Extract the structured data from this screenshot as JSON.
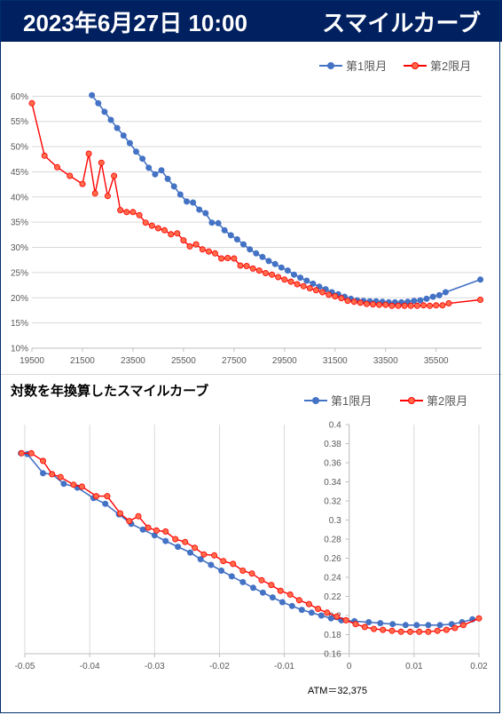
{
  "header": {
    "date": "2023年6月27日 10:00",
    "title": "スマイルカーブ"
  },
  "colors": {
    "header_bg": "#002060",
    "series1": "#4472c4",
    "series2": "#ff0000",
    "series2_fill": "#ff6a4a"
  },
  "chart_data": [
    {
      "type": "line",
      "title": "",
      "xlabel": "",
      "ylabel": "",
      "xlim": [
        19500,
        37300
      ],
      "ylim": [
        10,
        62
      ],
      "xticks": [
        "19500",
        "21500",
        "23500",
        "25500",
        "27500",
        "29500",
        "31500",
        "33500",
        "35500"
      ],
      "yticks": [
        "10%",
        "15%",
        "20%",
        "25%",
        "30%",
        "35%",
        "40%",
        "45%",
        "50%",
        "55%",
        "60%"
      ],
      "grid": "horizontal",
      "legend": "top-right",
      "series": [
        {
          "name": "第1限月",
          "points": [
            [
              21875,
              60.2
            ],
            [
              22125,
              58.6
            ],
            [
              22375,
              56.9
            ],
            [
              22625,
              55.3
            ],
            [
              22875,
              53.7
            ],
            [
              23125,
              52.2
            ],
            [
              23375,
              50.7
            ],
            [
              23625,
              49.0
            ],
            [
              23875,
              47.6
            ],
            [
              24125,
              45.8
            ],
            [
              24375,
              44.5
            ],
            [
              24625,
              45.3
            ],
            [
              24875,
              43.6
            ],
            [
              25125,
              42.1
            ],
            [
              25375,
              40.5
            ],
            [
              25625,
              39.1
            ],
            [
              25875,
              38.9
            ],
            [
              26125,
              37.5
            ],
            [
              26375,
              36.8
            ],
            [
              26625,
              34.9
            ],
            [
              26875,
              34.8
            ],
            [
              27125,
              33.4
            ],
            [
              27375,
              32.4
            ],
            [
              27625,
              31.6
            ],
            [
              27875,
              30.6
            ],
            [
              28125,
              29.6
            ],
            [
              28375,
              28.8
            ],
            [
              28625,
              28.1
            ],
            [
              28875,
              27.3
            ],
            [
              29125,
              26.7
            ],
            [
              29375,
              26.0
            ],
            [
              29625,
              25.4
            ],
            [
              29875,
              24.6
            ],
            [
              30125,
              24.0
            ],
            [
              30375,
              23.4
            ],
            [
              30625,
              22.8
            ],
            [
              30875,
              22.2
            ],
            [
              31125,
              21.7
            ],
            [
              31375,
              21.1
            ],
            [
              31625,
              20.7
            ],
            [
              31875,
              20.2
            ],
            [
              32125,
              19.8
            ],
            [
              32375,
              19.5
            ],
            [
              32625,
              19.4
            ],
            [
              32875,
              19.3
            ],
            [
              33125,
              19.3
            ],
            [
              33375,
              19.2
            ],
            [
              33625,
              19.1
            ],
            [
              33875,
              19.1
            ],
            [
              34125,
              19.1
            ],
            [
              34375,
              19.2
            ],
            [
              34625,
              19.4
            ],
            [
              34875,
              19.5
            ],
            [
              35125,
              19.8
            ],
            [
              35375,
              20.2
            ],
            [
              35625,
              20.5
            ],
            [
              35875,
              21.1
            ],
            [
              37250,
              23.6
            ]
          ]
        },
        {
          "name": "第2限月",
          "points": [
            [
              19500,
              58.6
            ],
            [
              20000,
              48.2
            ],
            [
              20500,
              45.9
            ],
            [
              21000,
              44.2
            ],
            [
              21500,
              42.6
            ],
            [
              21750,
              48.6
            ],
            [
              22000,
              40.7
            ],
            [
              22250,
              46.8
            ],
            [
              22500,
              40.2
            ],
            [
              22750,
              44.2
            ],
            [
              23000,
              37.4
            ],
            [
              23250,
              37.0
            ],
            [
              23500,
              37.0
            ],
            [
              23750,
              36.4
            ],
            [
              24000,
              34.9
            ],
            [
              24250,
              34.3
            ],
            [
              24500,
              33.8
            ],
            [
              24750,
              33.4
            ],
            [
              25000,
              32.6
            ],
            [
              25250,
              32.8
            ],
            [
              25500,
              31.4
            ],
            [
              25750,
              30.2
            ],
            [
              26000,
              30.6
            ],
            [
              26250,
              29.6
            ],
            [
              26500,
              29.2
            ],
            [
              26750,
              28.8
            ],
            [
              27000,
              27.8
            ],
            [
              27250,
              27.9
            ],
            [
              27500,
              27.8
            ],
            [
              27750,
              26.4
            ],
            [
              28000,
              26.3
            ],
            [
              28250,
              25.8
            ],
            [
              28500,
              25.4
            ],
            [
              28750,
              24.9
            ],
            [
              29000,
              24.6
            ],
            [
              29250,
              24.1
            ],
            [
              29500,
              23.6
            ],
            [
              29750,
              23.2
            ],
            [
              30000,
              22.7
            ],
            [
              30250,
              22.3
            ],
            [
              30500,
              21.9
            ],
            [
              30750,
              21.5
            ],
            [
              31000,
              21.1
            ],
            [
              31250,
              20.6
            ],
            [
              31500,
              20.3
            ],
            [
              31750,
              19.9
            ],
            [
              32000,
              19.4
            ],
            [
              32250,
              19.2
            ],
            [
              32500,
              19.0
            ],
            [
              32750,
              18.8
            ],
            [
              33000,
              18.7
            ],
            [
              33250,
              18.6
            ],
            [
              33500,
              18.6
            ],
            [
              33750,
              18.4
            ],
            [
              34000,
              18.4
            ],
            [
              34250,
              18.4
            ],
            [
              34500,
              18.4
            ],
            [
              34750,
              18.4
            ],
            [
              35000,
              18.5
            ],
            [
              35250,
              18.4
            ],
            [
              35500,
              18.5
            ],
            [
              35750,
              18.5
            ],
            [
              36000,
              18.9
            ],
            [
              37250,
              19.6
            ]
          ]
        }
      ]
    },
    {
      "type": "scatter",
      "title": "対数を年換算したスマイルカーブ",
      "xlabel": "",
      "ylabel": "",
      "xlim": [
        -0.05,
        0.02
      ],
      "ylim": [
        0.16,
        0.4
      ],
      "xticks": [
        "-0.05",
        "-0.04",
        "-0.03",
        "-0.02",
        "-0.01",
        "0",
        "0.01",
        "0.02"
      ],
      "yticks": [
        "0.16",
        "0.18",
        "0.2",
        "0.22",
        "0.24",
        "0.26",
        "0.28",
        "0.3",
        "0.32",
        "0.34",
        "0.36",
        "0.38",
        "0.4"
      ],
      "grid": "vertical",
      "legend": "top-right",
      "annotation": "ATM＝32,375",
      "series": [
        {
          "name": "第1限月",
          "points": [
            [
              -0.0506,
              0.37
            ],
            [
              -0.0496,
              0.369
            ],
            [
              -0.0472,
              0.349
            ],
            [
              -0.0458,
              0.348
            ],
            [
              -0.044,
              0.338
            ],
            [
              -0.0419,
              0.334
            ],
            [
              -0.0394,
              0.323
            ],
            [
              -0.0376,
              0.317
            ],
            [
              -0.0355,
              0.306
            ],
            [
              -0.0336,
              0.296
            ],
            [
              -0.0318,
              0.29
            ],
            [
              -0.03,
              0.284
            ],
            [
              -0.0283,
              0.278
            ],
            [
              -0.0264,
              0.272
            ],
            [
              -0.0245,
              0.266
            ],
            [
              -0.0229,
              0.259
            ],
            [
              -0.0213,
              0.253
            ],
            [
              -0.0197,
              0.247
            ],
            [
              -0.0181,
              0.241
            ],
            [
              -0.0164,
              0.235
            ],
            [
              -0.0148,
              0.229
            ],
            [
              -0.0133,
              0.224
            ],
            [
              -0.0118,
              0.219
            ],
            [
              -0.0103,
              0.214
            ],
            [
              -0.0088,
              0.21
            ],
            [
              -0.0073,
              0.206
            ],
            [
              -0.0058,
              0.203
            ],
            [
              -0.0043,
              0.2
            ],
            [
              -0.0028,
              0.197
            ],
            [
              -0.0012,
              0.195
            ],
            [
              0.0008,
              0.194
            ],
            [
              0.003,
              0.193
            ],
            [
              0.0048,
              0.192
            ],
            [
              0.0067,
              0.191
            ],
            [
              0.0087,
              0.19
            ],
            [
              0.0104,
              0.19
            ],
            [
              0.0122,
              0.19
            ],
            [
              0.014,
              0.19
            ],
            [
              0.0158,
              0.191
            ],
            [
              0.0174,
              0.193
            ],
            [
              0.019,
              0.196
            ]
          ]
        },
        {
          "name": "第2限月",
          "points": [
            [
              -0.0505,
              0.37
            ],
            [
              -0.049,
              0.37
            ],
            [
              -0.0472,
              0.362
            ],
            [
              -0.0458,
              0.348
            ],
            [
              -0.0445,
              0.345
            ],
            [
              -0.0425,
              0.337
            ],
            [
              -0.0412,
              0.335
            ],
            [
              -0.039,
              0.325
            ],
            [
              -0.0373,
              0.325
            ],
            [
              -0.0353,
              0.307
            ],
            [
              -0.0339,
              0.299
            ],
            [
              -0.0325,
              0.304
            ],
            [
              -0.031,
              0.292
            ],
            [
              -0.0297,
              0.289
            ],
            [
              -0.0283,
              0.288
            ],
            [
              -0.0268,
              0.28
            ],
            [
              -0.0253,
              0.277
            ],
            [
              -0.0238,
              0.271
            ],
            [
              -0.0224,
              0.264
            ],
            [
              -0.0208,
              0.263
            ],
            [
              -0.0194,
              0.257
            ],
            [
              -0.0179,
              0.254
            ],
            [
              -0.0164,
              0.247
            ],
            [
              -0.015,
              0.244
            ],
            [
              -0.0135,
              0.237
            ],
            [
              -0.012,
              0.232
            ],
            [
              -0.0106,
              0.226
            ],
            [
              -0.0091,
              0.222
            ],
            [
              -0.0077,
              0.216
            ],
            [
              -0.0062,
              0.212
            ],
            [
              -0.0048,
              0.207
            ],
            [
              -0.0034,
              0.203
            ],
            [
              -0.0019,
              0.199
            ],
            [
              -0.0005,
              0.195
            ],
            [
              0.001,
              0.191
            ],
            [
              0.0024,
              0.188
            ],
            [
              0.0038,
              0.186
            ],
            [
              0.0052,
              0.185
            ],
            [
              0.0066,
              0.184
            ],
            [
              0.008,
              0.183
            ],
            [
              0.0094,
              0.183
            ],
            [
              0.0108,
              0.183
            ],
            [
              0.0122,
              0.183
            ],
            [
              0.0136,
              0.184
            ],
            [
              0.015,
              0.185
            ],
            [
              0.0163,
              0.187
            ],
            [
              0.0176,
              0.19
            ],
            [
              0.02,
              0.197
            ]
          ]
        }
      ]
    }
  ]
}
